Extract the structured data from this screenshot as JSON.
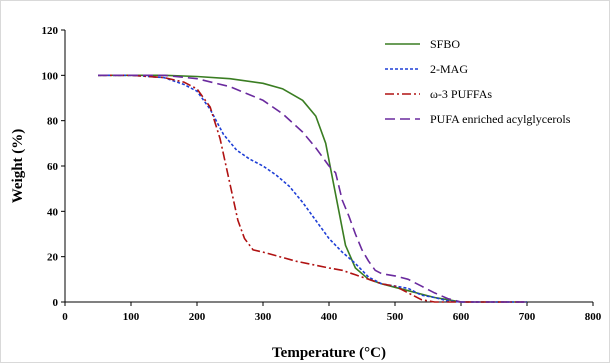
{
  "chart_data": {
    "type": "line",
    "title": "",
    "xlabel": "Temperature (°C)",
    "ylabel": "Weight (%)",
    "xlim": [
      0,
      800
    ],
    "ylim": [
      0,
      120
    ],
    "x_ticks": [
      0,
      100,
      200,
      300,
      400,
      500,
      600,
      700,
      800
    ],
    "y_ticks": [
      0,
      20,
      40,
      60,
      80,
      100,
      120
    ],
    "grid": false,
    "legend_position": "top-right",
    "series": [
      {
        "name": "SFBO",
        "color": "#3a7d22",
        "dash": "solid",
        "points": [
          [
            50,
            100
          ],
          [
            100,
            100
          ],
          [
            150,
            100
          ],
          [
            200,
            99.5
          ],
          [
            250,
            98.5
          ],
          [
            300,
            96.5
          ],
          [
            330,
            94
          ],
          [
            360,
            89
          ],
          [
            380,
            82
          ],
          [
            395,
            70
          ],
          [
            405,
            55
          ],
          [
            415,
            40
          ],
          [
            425,
            25
          ],
          [
            440,
            15
          ],
          [
            460,
            10
          ],
          [
            480,
            8
          ],
          [
            500,
            6.5
          ],
          [
            520,
            5
          ],
          [
            540,
            3.5
          ],
          [
            560,
            2
          ],
          [
            580,
            1
          ],
          [
            600,
            0
          ],
          [
            700,
            0
          ]
        ]
      },
      {
        "name": "2-MAG",
        "color": "#1f3fd6",
        "dash": "short",
        "points": [
          [
            50,
            100
          ],
          [
            100,
            100
          ],
          [
            150,
            99
          ],
          [
            180,
            96
          ],
          [
            200,
            93
          ],
          [
            220,
            85
          ],
          [
            240,
            74
          ],
          [
            260,
            67
          ],
          [
            280,
            63
          ],
          [
            300,
            60
          ],
          [
            320,
            56
          ],
          [
            340,
            51
          ],
          [
            360,
            44
          ],
          [
            380,
            36
          ],
          [
            400,
            28
          ],
          [
            420,
            22
          ],
          [
            440,
            17
          ],
          [
            460,
            11
          ],
          [
            480,
            8
          ],
          [
            500,
            7
          ],
          [
            520,
            6
          ],
          [
            540,
            3
          ],
          [
            560,
            2
          ],
          [
            580,
            0.5
          ],
          [
            600,
            0
          ],
          [
            700,
            0
          ]
        ]
      },
      {
        "name": "ω-3 PUFFAs",
        "color": "#b01212",
        "dash": "dashdot",
        "points": [
          [
            50,
            100
          ],
          [
            100,
            100
          ],
          [
            150,
            99
          ],
          [
            180,
            97
          ],
          [
            200,
            94
          ],
          [
            220,
            86
          ],
          [
            235,
            72
          ],
          [
            250,
            52
          ],
          [
            262,
            36
          ],
          [
            272,
            28
          ],
          [
            285,
            23
          ],
          [
            300,
            22
          ],
          [
            350,
            18
          ],
          [
            400,
            15
          ],
          [
            420,
            14
          ],
          [
            440,
            12
          ],
          [
            460,
            10
          ],
          [
            480,
            8
          ],
          [
            500,
            7
          ],
          [
            520,
            4
          ],
          [
            540,
            1
          ],
          [
            560,
            0
          ],
          [
            600,
            0
          ],
          [
            700,
            0
          ]
        ]
      },
      {
        "name": "PUFA enriched acylglycerols",
        "color": "#6a2a9e",
        "dash": "long",
        "points": [
          [
            50,
            100
          ],
          [
            100,
            100
          ],
          [
            150,
            100
          ],
          [
            200,
            98.5
          ],
          [
            250,
            95
          ],
          [
            300,
            89
          ],
          [
            330,
            83
          ],
          [
            360,
            75
          ],
          [
            380,
            68
          ],
          [
            400,
            60
          ],
          [
            410,
            57
          ],
          [
            420,
            45
          ],
          [
            430,
            38
          ],
          [
            440,
            30
          ],
          [
            450,
            23
          ],
          [
            460,
            18
          ],
          [
            470,
            14
          ],
          [
            480,
            12.5
          ],
          [
            500,
            11.5
          ],
          [
            520,
            10
          ],
          [
            540,
            7
          ],
          [
            560,
            4
          ],
          [
            580,
            1.5
          ],
          [
            600,
            0
          ],
          [
            700,
            0
          ]
        ]
      }
    ]
  }
}
